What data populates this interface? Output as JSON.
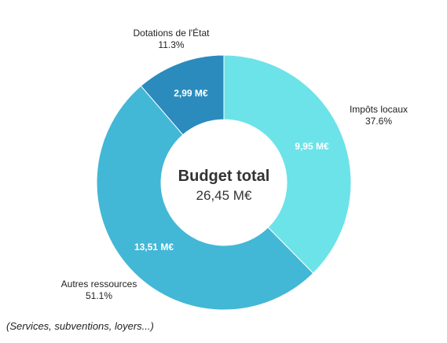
{
  "chart_data": {
    "type": "pie",
    "donut": true,
    "center": {
      "title": "Budget total",
      "value": "26,45 M€"
    },
    "slices": [
      {
        "label": "Impôts locaux",
        "percent_label": "37.6%",
        "value_label": "9,95 M€",
        "value": 9.95,
        "percent": 37.6,
        "color": "#6ce3e8"
      },
      {
        "label": "Autres ressources",
        "percent_label": "51.1%",
        "value_label": "13,51 M€",
        "value": 13.51,
        "percent": 51.1,
        "color": "#43b7d6"
      },
      {
        "label": "Dotations de l'État",
        "percent_label": "11.3%",
        "value_label": "2,99 M€",
        "value": 2.99,
        "percent": 11.3,
        "color": "#2b8bbd"
      }
    ]
  },
  "footnote": "(Services, subventions, loyers...)"
}
